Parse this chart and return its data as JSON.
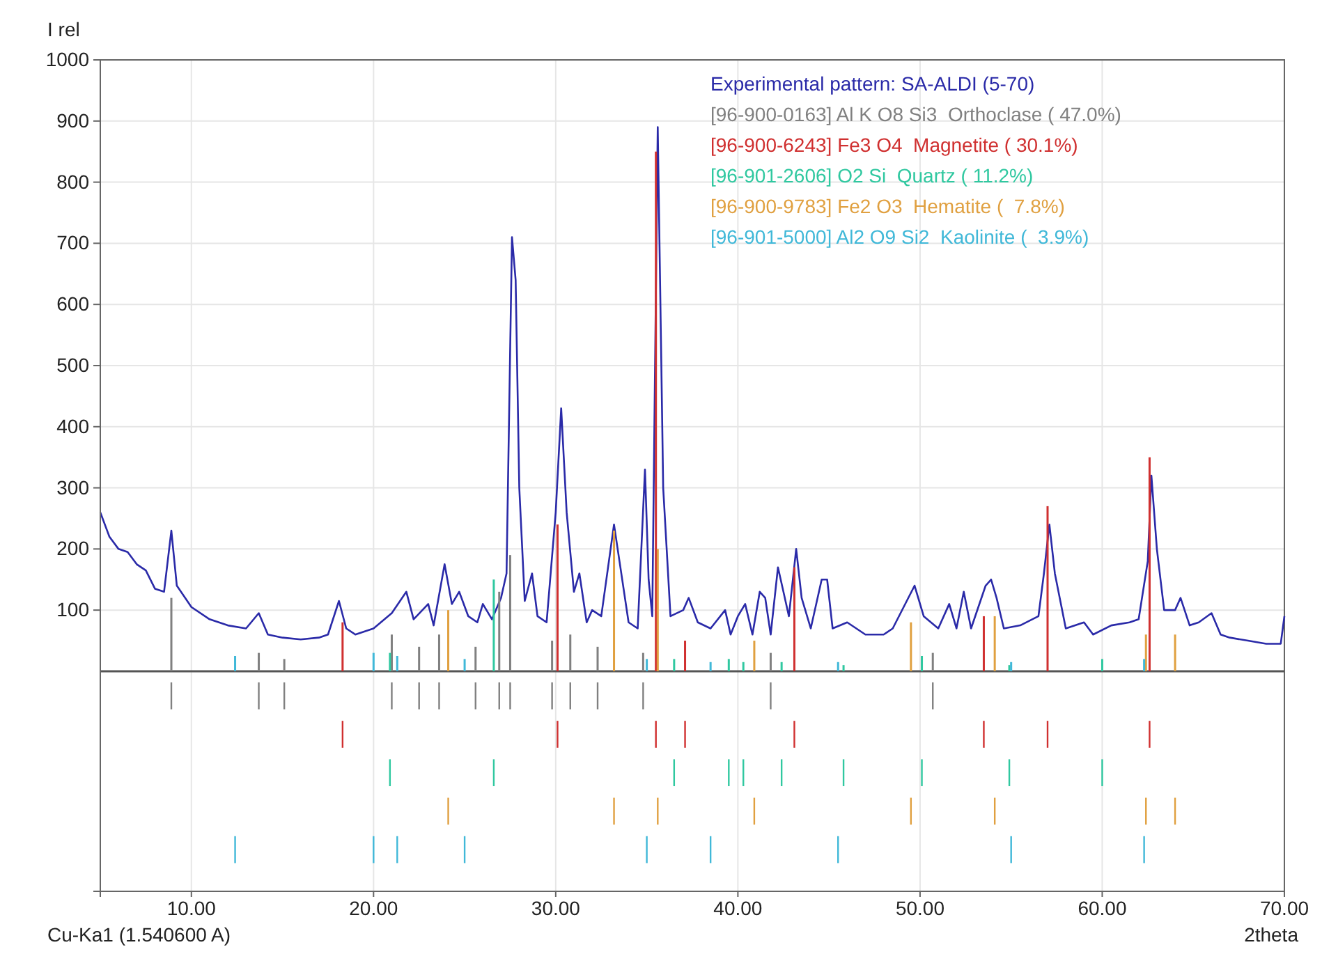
{
  "chart_data": {
    "type": "line",
    "ylabel": "I rel",
    "xlabel": "2theta",
    "annotations": [
      "Cu-Ka1 (1.540600 A)"
    ],
    "xlim": [
      5,
      70
    ],
    "ylim": [
      -360,
      1000
    ],
    "xticks": [
      {
        "value": 10,
        "label": "10.00"
      },
      {
        "value": 20,
        "label": "20.00"
      },
      {
        "value": 30,
        "label": "30.00"
      },
      {
        "value": 40,
        "label": "40.00"
      },
      {
        "value": 50,
        "label": "50.00"
      },
      {
        "value": 60,
        "label": "60.00"
      },
      {
        "value": 70,
        "label": "70.00"
      }
    ],
    "yticks": [
      100,
      200,
      300,
      400,
      500,
      600,
      700,
      800,
      900,
      1000
    ],
    "grid": true,
    "legend": "top right",
    "series": [
      {
        "name": "Experimental pattern: SA-ALDI (5-70)",
        "color": "#2a2aa8",
        "x": [
          5,
          5.5,
          6,
          6.5,
          7,
          7.5,
          8,
          8.5,
          8.9,
          9.2,
          10,
          11,
          12,
          13,
          13.7,
          14.2,
          15,
          16,
          17,
          17.5,
          18.1,
          18.5,
          19,
          20,
          21,
          21.8,
          22.2,
          23,
          23.3,
          23.9,
          24.3,
          24.7,
          25.2,
          25.7,
          26,
          26.5,
          27,
          27.3,
          27.6,
          27.8,
          28,
          28.3,
          28.7,
          29,
          29.5,
          30,
          30.3,
          30.6,
          31,
          31.3,
          31.7,
          32,
          32.5,
          33.2,
          33.5,
          34,
          34.5,
          34.9,
          35.1,
          35.3,
          35.6,
          35.9,
          36.3,
          37,
          37.3,
          37.8,
          38.5,
          39.3,
          39.6,
          40,
          40.4,
          40.8,
          41.2,
          41.5,
          41.8,
          42.2,
          42.5,
          42.8,
          43.2,
          43.5,
          44,
          44.6,
          44.9,
          45.2,
          46,
          47,
          48,
          48.5,
          49.7,
          50.2,
          51,
          51.6,
          52,
          52.4,
          52.8,
          53.6,
          53.9,
          54.2,
          54.6,
          55.5,
          56.5,
          56.8,
          57.1,
          57.4,
          58,
          59,
          59.5,
          60.5,
          61.5,
          62,
          62.5,
          62.7,
          63,
          63.4,
          64,
          64.3,
          64.8,
          65.3,
          66,
          66.5,
          67,
          68,
          69,
          69.8,
          70
        ],
        "values": [
          260,
          220,
          200,
          195,
          175,
          165,
          135,
          130,
          230,
          140,
          105,
          85,
          75,
          70,
          95,
          60,
          55,
          52,
          55,
          60,
          115,
          70,
          60,
          70,
          95,
          130,
          85,
          110,
          75,
          175,
          110,
          130,
          90,
          80,
          110,
          85,
          120,
          160,
          710,
          640,
          300,
          115,
          160,
          90,
          80,
          260,
          430,
          260,
          130,
          160,
          80,
          100,
          90,
          240,
          180,
          80,
          70,
          330,
          150,
          90,
          890,
          300,
          90,
          100,
          120,
          80,
          70,
          100,
          60,
          90,
          110,
          60,
          130,
          120,
          60,
          170,
          130,
          90,
          200,
          120,
          70,
          150,
          150,
          70,
          80,
          60,
          60,
          70,
          140,
          90,
          70,
          110,
          70,
          130,
          70,
          140,
          150,
          120,
          70,
          75,
          90,
          160,
          240,
          160,
          70,
          80,
          60,
          75,
          80,
          85,
          180,
          320,
          200,
          100,
          100,
          120,
          75,
          80,
          95,
          60,
          55,
          50,
          45,
          45,
          90
        ]
      },
      {
        "name": "[96-900-0163] Al K O8 Si3  Orthoclase ( 47.0%)",
        "color": "#808080",
        "type": "bar",
        "x": [
          8.9,
          13.7,
          15.1,
          21,
          22.5,
          23.6,
          25.6,
          26.9,
          27.5,
          29.8,
          30.8,
          32.3,
          34.8,
          41.8,
          50.7
        ],
        "values": [
          120,
          30,
          20,
          60,
          40,
          60,
          40,
          130,
          190,
          50,
          60,
          40,
          30,
          30,
          30
        ]
      },
      {
        "name": "[96-900-6243] Fe3 O4  Magnetite ( 30.1%)",
        "color": "#d03030",
        "type": "bar",
        "x": [
          18.3,
          30.1,
          35.5,
          37.1,
          43.1,
          53.5,
          57,
          62.6
        ],
        "values": [
          80,
          240,
          850,
          50,
          170,
          90,
          270,
          350
        ]
      },
      {
        "name": "[96-901-2606] O2 Si  Quartz ( 11.2%)",
        "color": "#30c8a0",
        "type": "bar",
        "x": [
          20.9,
          26.6,
          36.5,
          39.5,
          40.3,
          42.4,
          45.8,
          50.1,
          54.9,
          60
        ],
        "values": [
          30,
          150,
          20,
          20,
          15,
          15,
          10,
          25,
          10,
          20
        ]
      },
      {
        "name": "[96-900-9783] Fe2 O3  Hematite (  7.8%)",
        "color": "#e0a040",
        "type": "bar",
        "x": [
          24.1,
          33.2,
          35.6,
          40.9,
          49.5,
          54.1,
          62.4,
          64
        ],
        "values": [
          100,
          230,
          200,
          50,
          80,
          90,
          60,
          60
        ]
      },
      {
        "name": "[96-901-5000] Al2 O9 Si2  Kaolinite (  3.9%)",
        "color": "#40b8d8",
        "type": "bar",
        "x": [
          12.4,
          20,
          21.3,
          25,
          35,
          38.5,
          45.5,
          55,
          62.3
        ],
        "values": [
          25,
          30,
          25,
          20,
          20,
          15,
          15,
          15,
          20
        ]
      }
    ]
  }
}
